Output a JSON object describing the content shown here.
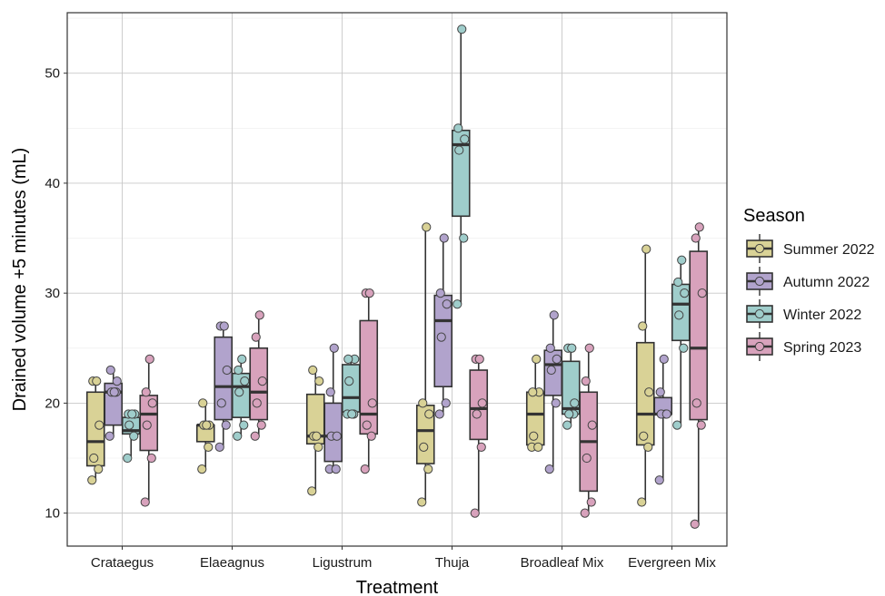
{
  "chart_data": {
    "type": "boxplot",
    "title": "",
    "xlabel": "Treatment",
    "ylabel": "Drained volume +5 minutes (mL)",
    "ylim": [
      7,
      55.5
    ],
    "yticks": [
      10,
      20,
      30,
      40,
      50
    ],
    "grid": true,
    "legend": {
      "title": "Season",
      "position": "right"
    },
    "categories": [
      "Crataegus",
      "Elaeagnus",
      "Ligustrum",
      "Thuja",
      "Broadleaf Mix",
      "Evergreen Mix"
    ],
    "series": [
      {
        "name": "Summer 2022",
        "color": "#d9d296",
        "boxes": [
          {
            "min": 13,
            "q1": 14.3,
            "median": 16.5,
            "q3": 21,
            "max": 22,
            "points": [
              13,
              14,
              15,
              18,
              22,
              22
            ]
          },
          {
            "min": 14,
            "q1": 16.5,
            "median": 18,
            "q3": 18,
            "max": 20,
            "points": [
              14,
              16,
              18,
              18,
              20,
              18
            ]
          },
          {
            "min": 12,
            "q1": 16.3,
            "median": 17,
            "q3": 20.8,
            "max": 23,
            "points": [
              12,
              16,
              17,
              22,
              23,
              17
            ]
          },
          {
            "min": 11,
            "q1": 14.5,
            "median": 17.5,
            "q3": 19.8,
            "max": 36,
            "points": [
              11,
              14,
              16,
              19,
              20,
              36
            ]
          },
          {
            "min": 16,
            "q1": 16.2,
            "median": 19,
            "q3": 21,
            "max": 24,
            "points": [
              16,
              16,
              17,
              21,
              21,
              24
            ]
          },
          {
            "min": 11,
            "q1": 16.2,
            "median": 19,
            "q3": 25.5,
            "max": 34,
            "points": [
              11,
              16,
              17,
              21,
              27,
              34
            ]
          }
        ]
      },
      {
        "name": "Autumn 2022",
        "color": "#b1a3cc",
        "boxes": [
          {
            "min": 17,
            "q1": 18,
            "median": 21,
            "q3": 21.8,
            "max": 23,
            "points": [
              17,
              21,
              21,
              22,
              23,
              21
            ]
          },
          {
            "min": 16,
            "q1": 18.5,
            "median": 21.5,
            "q3": 26,
            "max": 27,
            "points": [
              16,
              18,
              20,
              23,
              27,
              27
            ]
          },
          {
            "min": 14,
            "q1": 14.7,
            "median": 17,
            "q3": 20,
            "max": 25,
            "points": [
              14,
              14,
              17,
              17,
              21,
              25
            ]
          },
          {
            "min": 19,
            "q1": 21.5,
            "median": 27.5,
            "q3": 29.8,
            "max": 35,
            "points": [
              19,
              20,
              26,
              29,
              30,
              35
            ]
          },
          {
            "min": 14,
            "q1": 20.7,
            "median": 23.5,
            "q3": 24.8,
            "max": 28,
            "points": [
              14,
              20,
              23,
              24,
              25,
              28
            ]
          },
          {
            "min": 13,
            "q1": 19,
            "median": 19,
            "q3": 20.5,
            "max": 24,
            "points": [
              13,
              19,
              19,
              19,
              21,
              24
            ]
          }
        ]
      },
      {
        "name": "Winter 2022",
        "color": "#9fcdcb",
        "boxes": [
          {
            "min": 15,
            "q1": 17.2,
            "median": 17.5,
            "q3": 18.7,
            "max": 19,
            "points": [
              15,
              17,
              18,
              19,
              19,
              19
            ]
          },
          {
            "min": 17,
            "q1": 18.7,
            "median": 21.5,
            "q3": 22.7,
            "max": 24,
            "points": [
              17,
              18,
              21,
              22,
              23,
              24
            ]
          },
          {
            "min": 19,
            "q1": 19.2,
            "median": 20.5,
            "q3": 23.5,
            "max": 24,
            "points": [
              19,
              19,
              22,
              24,
              24,
              19
            ]
          },
          {
            "min": 29,
            "q1": 37,
            "median": 43.5,
            "q3": 44.8,
            "max": 54,
            "points": [
              29,
              35,
              43,
              44,
              45,
              54
            ]
          },
          {
            "min": 18,
            "q1": 19,
            "median": 19.5,
            "q3": 23.8,
            "max": 25,
            "points": [
              18,
              19,
              19,
              20,
              25,
              25
            ]
          },
          {
            "min": 18,
            "q1": 25.7,
            "median": 29,
            "q3": 30.8,
            "max": 33,
            "points": [
              18,
              25,
              28,
              30,
              31,
              33
            ]
          }
        ]
      },
      {
        "name": "Spring 2023",
        "color": "#d8a2bc",
        "boxes": [
          {
            "min": 11,
            "q1": 15.7,
            "median": 19,
            "q3": 20.7,
            "max": 24,
            "points": [
              11,
              15,
              18,
              20,
              21,
              24
            ]
          },
          {
            "min": 17,
            "q1": 18.5,
            "median": 21,
            "q3": 25,
            "max": 28,
            "points": [
              17,
              18,
              20,
              22,
              26,
              28
            ]
          },
          {
            "min": 14,
            "q1": 17.2,
            "median": 19,
            "q3": 27.5,
            "max": 30,
            "points": [
              14,
              17,
              18,
              20,
              30,
              30
            ]
          },
          {
            "min": 10,
            "q1": 16.7,
            "median": 19.5,
            "q3": 23,
            "max": 24,
            "points": [
              10,
              16,
              19,
              20,
              24,
              24
            ]
          },
          {
            "min": 10,
            "q1": 12,
            "median": 16.5,
            "q3": 21,
            "max": 25,
            "points": [
              10,
              11,
              15,
              18,
              22,
              25
            ]
          },
          {
            "min": 9,
            "q1": 18.5,
            "median": 25,
            "q3": 33.8,
            "max": 36,
            "points": [
              9,
              18,
              20,
              30,
              35,
              36
            ]
          }
        ]
      }
    ]
  }
}
